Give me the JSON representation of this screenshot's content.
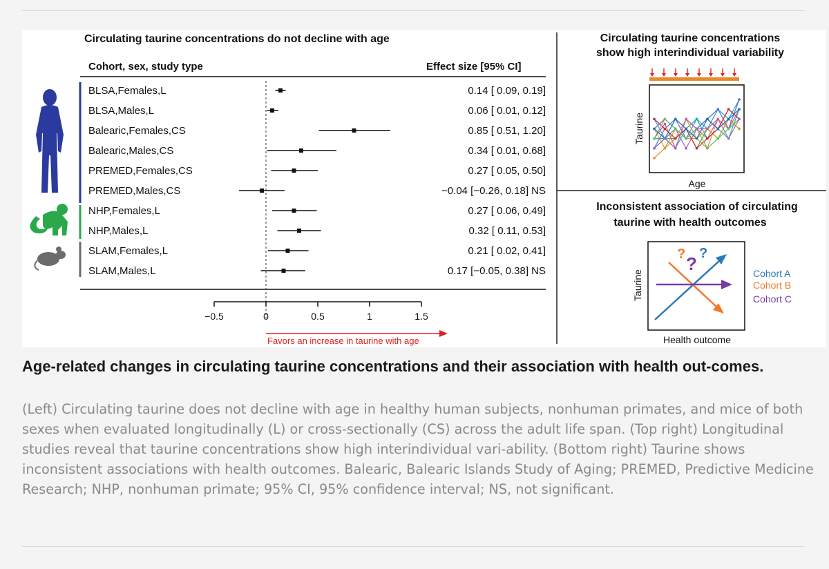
{
  "caption": {
    "title": "Age-related changes in circulating taurine concentrations and their association with health out-comes.",
    "body": "(Left) Circulating taurine does not decline with age in healthy human subjects, nonhuman primates, and mice of both sexes when evaluated longitudinally (L) or cross-sectionally (CS) across the adult life span. (Top right) Longitudinal studies reveal that taurine concentrations show high interindividual vari-ability. (Bottom right) Taurine shows inconsistent associations with health outcomes. Balearic, Balearic Islands Study of Aging; PREMED, Predictive Medicine Research; NHP, nonhuman primate; 95% CI, 95% confidence interval; NS, not significant."
  },
  "colors": {
    "human": "#2b3a9e",
    "monkey": "#2aa84a",
    "mouse": "#6b6b6b",
    "arrow": "#e02020",
    "cohortA": "#2a7ab8",
    "cohortB": "#f07a2a",
    "cohortC": "#7a3aa8"
  },
  "chart_data": [
    {
      "type": "forest",
      "title": "Circulating taurine concentrations do not decline with age",
      "col_left": "Cohort, sex, study type",
      "col_right": "Effect size [95% CI]",
      "xlim": [
        -0.5,
        1.5
      ],
      "xticks": [
        "−0.5",
        "0",
        "0.5",
        "1",
        "1.5"
      ],
      "xtick_values": [
        -0.5,
        0,
        0.5,
        1,
        1.5
      ],
      "favor_label": "Favors an increase in taurine with age",
      "rows": [
        {
          "label": "BLSA,Females,L",
          "est": 0.14,
          "lo": 0.09,
          "hi": 0.19,
          "text": "0.14 [ 0.09, 0.19]",
          "group": "human"
        },
        {
          "label": "BLSA,Males,L",
          "est": 0.06,
          "lo": 0.01,
          "hi": 0.12,
          "text": "0.06 [ 0.01, 0.12]",
          "group": "human"
        },
        {
          "label": "Balearic,Females,CS",
          "est": 0.85,
          "lo": 0.51,
          "hi": 1.2,
          "text": "0.85 [ 0.51, 1.20]",
          "group": "human"
        },
        {
          "label": "Balearic,Males,CS",
          "est": 0.34,
          "lo": 0.01,
          "hi": 0.68,
          "text": "0.34 [ 0.01, 0.68]",
          "group": "human"
        },
        {
          "label": "PREMED,Females,CS",
          "est": 0.27,
          "lo": 0.05,
          "hi": 0.5,
          "text": "0.27 [ 0.05, 0.50]",
          "group": "human"
        },
        {
          "label": "PREMED,Males,CS",
          "est": -0.04,
          "lo": -0.26,
          "hi": 0.18,
          "text": "−0.04 [−0.26, 0.18] NS",
          "group": "human"
        },
        {
          "label": "NHP,Females,L",
          "est": 0.27,
          "lo": 0.06,
          "hi": 0.49,
          "text": "0.27 [ 0.06, 0.49]",
          "group": "monkey"
        },
        {
          "label": "NHP,Males,L",
          "est": 0.32,
          "lo": 0.11,
          "hi": 0.53,
          "text": "0.32 [ 0.11, 0.53]",
          "group": "monkey"
        },
        {
          "label": "SLAM,Females,L",
          "est": 0.21,
          "lo": 0.02,
          "hi": 0.41,
          "text": "0.21 [ 0.02, 0.41]",
          "group": "mouse"
        },
        {
          "label": "SLAM,Males,L",
          "est": 0.17,
          "lo": -0.05,
          "hi": 0.38,
          "text": "0.17 [−0.05, 0.38] NS",
          "group": "mouse"
        }
      ]
    },
    {
      "type": "line",
      "title_line1": "Circulating taurine concentrations",
      "title_line2": "show high interindividual variability",
      "xlabel": "Age",
      "ylabel": "Taurine",
      "series_colors": [
        "#e64a8a",
        "#2a9fd8",
        "#3aa84a",
        "#9a5ad0",
        "#f08a30",
        "#20b0a0",
        "#d0a020",
        "#5a6ad8",
        "#c03030",
        "#60c060",
        "#2070c0",
        "#b060c0"
      ],
      "series": [
        {
          "name": "s1",
          "x": [
            0,
            1,
            2,
            3,
            4,
            5,
            6,
            7,
            8
          ],
          "y": [
            4,
            5.5,
            3,
            6,
            5,
            4,
            6,
            5,
            7
          ]
        },
        {
          "name": "s2",
          "x": [
            0,
            1,
            2,
            3,
            4,
            5,
            6,
            7,
            8
          ],
          "y": [
            6,
            4,
            5,
            4,
            6,
            5,
            7,
            6,
            8
          ]
        },
        {
          "name": "s3",
          "x": [
            0,
            1,
            2,
            3,
            4,
            5,
            6,
            7,
            8
          ],
          "y": [
            3,
            4,
            4,
            5,
            3,
            5,
            4,
            6,
            5
          ]
        },
        {
          "name": "s4",
          "x": [
            0,
            1,
            2,
            3,
            4,
            5,
            6,
            7,
            8
          ],
          "y": [
            5,
            6,
            5,
            3,
            5,
            6,
            5,
            7,
            6
          ]
        },
        {
          "name": "s5",
          "x": [
            0,
            1,
            2,
            3,
            4,
            5,
            6,
            7,
            8
          ],
          "y": [
            2,
            3,
            5,
            4,
            4,
            3,
            6,
            5,
            6
          ]
        },
        {
          "name": "s6",
          "x": [
            0,
            1,
            2,
            3,
            4,
            5,
            6,
            7,
            8
          ],
          "y": [
            4,
            4,
            3,
            5,
            6,
            4,
            5,
            4,
            7
          ]
        },
        {
          "name": "s7",
          "x": [
            0,
            1,
            2,
            3,
            4,
            5,
            6,
            7,
            8
          ],
          "y": [
            5,
            3,
            4,
            6,
            4,
            5,
            4,
            6,
            5
          ]
        },
        {
          "name": "s8",
          "x": [
            0,
            1,
            2,
            3,
            4,
            5,
            6,
            7,
            8
          ],
          "y": [
            3,
            5,
            6,
            4,
            5,
            6,
            7,
            5,
            8
          ]
        },
        {
          "name": "s9",
          "x": [
            0,
            1,
            2,
            3,
            4,
            5,
            6,
            7,
            8
          ],
          "y": [
            6,
            5,
            4,
            5,
            3,
            4,
            5,
            7,
            6
          ]
        },
        {
          "name": "s10",
          "x": [
            0,
            1,
            2,
            3,
            4,
            5,
            6,
            7,
            8
          ],
          "y": [
            4,
            6,
            5,
            4,
            5,
            3,
            4,
            5,
            6
          ]
        },
        {
          "name": "s11",
          "x": [
            0,
            1,
            2,
            3,
            4,
            5,
            6,
            7,
            8
          ],
          "y": [
            5,
            4,
            6,
            5,
            4,
            6,
            5,
            6,
            7
          ]
        },
        {
          "name": "s12",
          "x": [
            0,
            1,
            2,
            3,
            4,
            5,
            6,
            7,
            8
          ],
          "y": [
            3,
            4,
            3,
            6,
            5,
            5,
            6,
            4,
            6
          ]
        }
      ],
      "ylim": [
        1,
        9
      ],
      "sample_markers": 8
    },
    {
      "type": "diagram",
      "title_line1": "Inconsistent association of circulating",
      "title_line2": "taurine with health outcomes",
      "xlabel": "Health outcome",
      "ylabel": "Taurine",
      "question_marks": [
        "?",
        "?",
        "?"
      ],
      "legend": [
        "Cohort A",
        "Cohort B",
        "Cohort C"
      ]
    }
  ]
}
